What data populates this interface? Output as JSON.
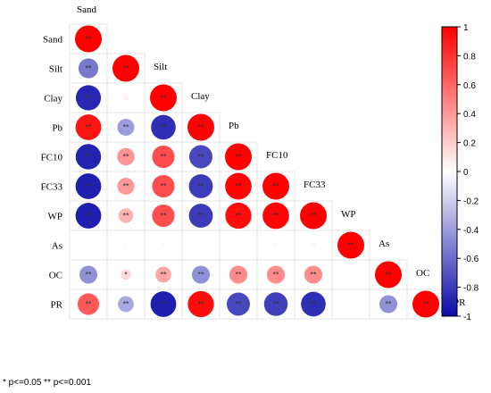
{
  "chart_data": {
    "type": "heatmap",
    "variables": [
      "Sand",
      "Silt",
      "Clay",
      "Pb",
      "FC10",
      "FC33",
      "WP",
      "As",
      "OC",
      "PR"
    ],
    "matrix": [
      [
        1.0
      ],
      [
        -0.55,
        1.0
      ],
      [
        -0.88,
        0.05,
        1.0
      ],
      [
        0.92,
        -0.4,
        -0.85,
        1.0
      ],
      [
        -0.9,
        0.42,
        0.7,
        -0.75,
        1.0
      ],
      [
        -0.92,
        0.4,
        0.7,
        -0.8,
        0.98,
        1.0
      ],
      [
        -0.92,
        0.3,
        0.7,
        -0.8,
        0.95,
        0.98,
        1.0
      ],
      [
        0.01,
        0.02,
        -0.02,
        0.0,
        0.01,
        0.03,
        0.04,
        1.0
      ],
      [
        -0.45,
        0.15,
        0.35,
        -0.45,
        0.45,
        0.45,
        0.45,
        0.01,
        1.0
      ],
      [
        0.65,
        -0.35,
        -0.92,
        0.95,
        -0.75,
        -0.78,
        -0.85,
        0.0,
        -0.45,
        1.0
      ]
    ],
    "significance": [
      [
        "**"
      ],
      [
        "**",
        "**"
      ],
      [
        "**",
        "",
        "**"
      ],
      [
        "**",
        "**",
        "**",
        "**"
      ],
      [
        "**",
        "**",
        "**",
        "**",
        "**"
      ],
      [
        "**",
        "**",
        "**",
        "**",
        "**",
        "**"
      ],
      [
        "**",
        "**",
        "**",
        "**",
        "**",
        "**",
        "**"
      ],
      [
        "",
        "",
        "",
        "",
        "",
        "",
        "",
        "**"
      ],
      [
        "**",
        "*",
        "**",
        "**",
        "**",
        "**",
        "**",
        "",
        "**"
      ],
      [
        "**",
        "**",
        "**",
        "**",
        "**",
        "**",
        "**",
        "",
        "**",
        "**"
      ]
    ],
    "colorbar": {
      "min": -1,
      "max": 1,
      "ticks": [
        "1",
        "0.8",
        "0.6",
        "0.4",
        "0.2",
        "0",
        "-0.2",
        "-0.4",
        "-0.6",
        "-0.8",
        "-1"
      ],
      "colors": {
        "negative": "#0a0aa8",
        "neutral": "#ffffff",
        "positive": "#ff0000"
      }
    },
    "footnote": "* p<=0.05  ** p<=0.001"
  }
}
